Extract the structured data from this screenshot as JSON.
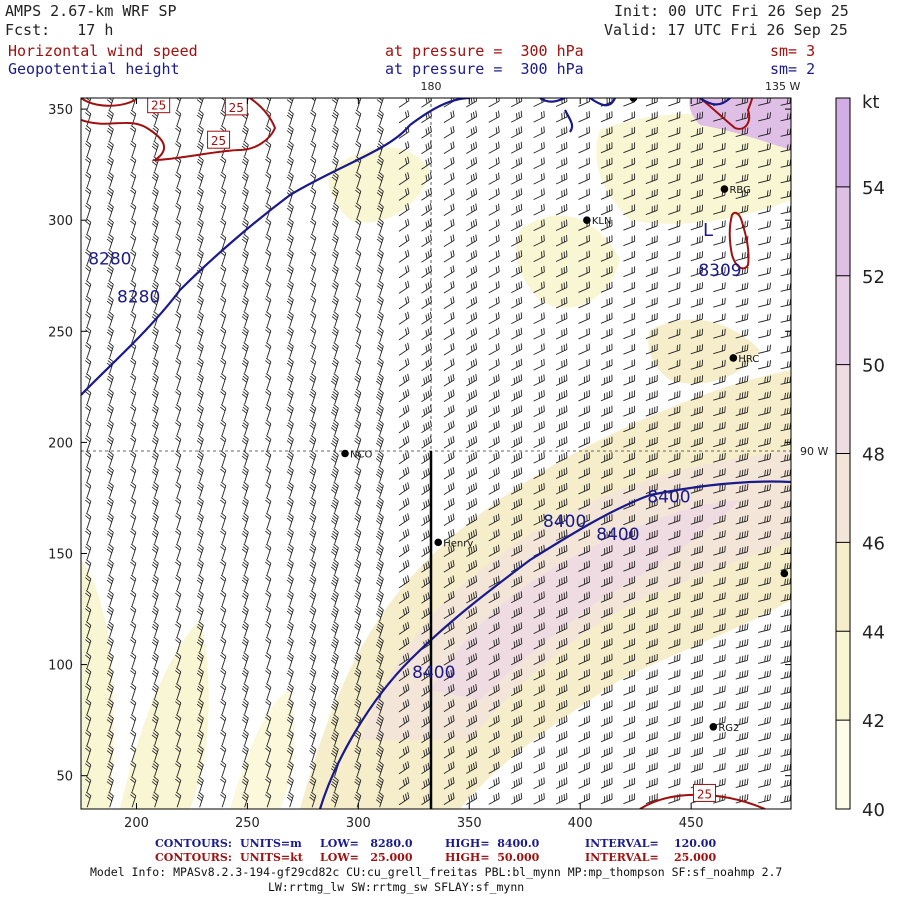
{
  "header": {
    "model": "AMPS 2.67-km WRF SP",
    "fcst": "Fcst:   17 h",
    "init": "Init: 00 UTC Fri 26 Sep 25",
    "valid": "Valid: 17 UTC Fri 26 Sep 25",
    "field1": "Horizontal wind speed",
    "field2": "Geopotential height",
    "pressure1": "at pressure =  300 hPa",
    "pressure2": "at pressure =  300 hPa",
    "sm1": "sm= 3",
    "sm2": "sm= 2"
  },
  "map_labels": {
    "lon180": "180",
    "lon135": "135 W",
    "lon90": "90 W",
    "low_marker": "L"
  },
  "stations": [
    {
      "name": "RBG",
      "x": 465,
      "y": 314
    },
    {
      "name": "KLN",
      "x": 403,
      "y": 300
    },
    {
      "name": "HRC",
      "x": 469,
      "y": 238
    },
    {
      "name": "NCO",
      "x": 294,
      "y": 195
    },
    {
      "name": "Henry",
      "x": 336,
      "y": 155
    },
    {
      "name": "RG2",
      "x": 460,
      "y": 72
    },
    {
      "name": "",
      "x": 492,
      "y": 141
    },
    {
      "name": "",
      "x": 424,
      "y": 355
    }
  ],
  "chart_data": {
    "type": "heatmap",
    "xlim": [
      175,
      495
    ],
    "ylim": [
      35,
      355
    ],
    "xticks": [
      200,
      250,
      300,
      350,
      400,
      450
    ],
    "yticks": [
      50,
      100,
      150,
      200,
      250,
      300,
      350
    ],
    "colorbar": {
      "unit": "kt",
      "ticks": [
        40,
        42,
        44,
        46,
        48,
        50,
        52,
        54
      ],
      "levels": [
        40,
        42,
        44,
        46,
        48,
        50,
        52,
        54,
        56
      ],
      "colors": [
        "#fdfde9",
        "#f9f6d4",
        "#f6eecb",
        "#f3e6d8",
        "#efdbe2",
        "#e8cde6",
        "#dfbfe6",
        "#d3aee4"
      ]
    },
    "height_contour_labels": [
      {
        "text": "8280",
        "x": 188,
        "y": 280
      },
      {
        "text": "8280",
        "x": 201,
        "y": 263
      },
      {
        "text": "8400",
        "x": 393,
        "y": 162
      },
      {
        "text": "8400",
        "x": 417,
        "y": 156
      },
      {
        "text": "8400",
        "x": 440,
        "y": 173
      },
      {
        "text": "8400",
        "x": 334,
        "y": 94
      },
      {
        "text": "8309",
        "x": 463,
        "y": 275
      }
    ],
    "speed_contour_labels": [
      {
        "text": "25",
        "x": 210,
        "y": 352
      },
      {
        "text": "25",
        "x": 245,
        "y": 351
      },
      {
        "text": "25",
        "x": 237,
        "y": 336
      },
      {
        "text": "25",
        "x": 456,
        "y": 42
      }
    ],
    "cross_section_line": {
      "x": 333,
      "y": [
        35,
        195
      ]
    },
    "guide_lines": {
      "lat": 195,
      "lon": 333
    }
  },
  "footer": {
    "line1_label": "CONTOURS:",
    "line1_units": "UNITS=m",
    "line1_low": "LOW=   8280.0",
    "line1_high": "HIGH=  8400.0",
    "line1_interval": "INTERVAL=    120.00",
    "line2_label": "CONTOURS:",
    "line2_units": "UNITS=kt",
    "line2_low": "LOW=   25.000",
    "line2_high": "HIGH=  50.000",
    "line2_interval": "INTERVAL=    25.000",
    "model_info": "Model Info: MPASv8.2.3-194-gf29cd82c CU:cu_grell_freitas PBL:bl_mynn MP:mp_thompson SF:sf_noahmp 2.7",
    "model_info2": "LW:rrtmg_lw SW:rrtmg_sw SFLAY:sf_mynn"
  },
  "colors": {
    "height_contour": "#1a1a8c",
    "speed_contour": "#a01010",
    "barb": "#222222"
  }
}
